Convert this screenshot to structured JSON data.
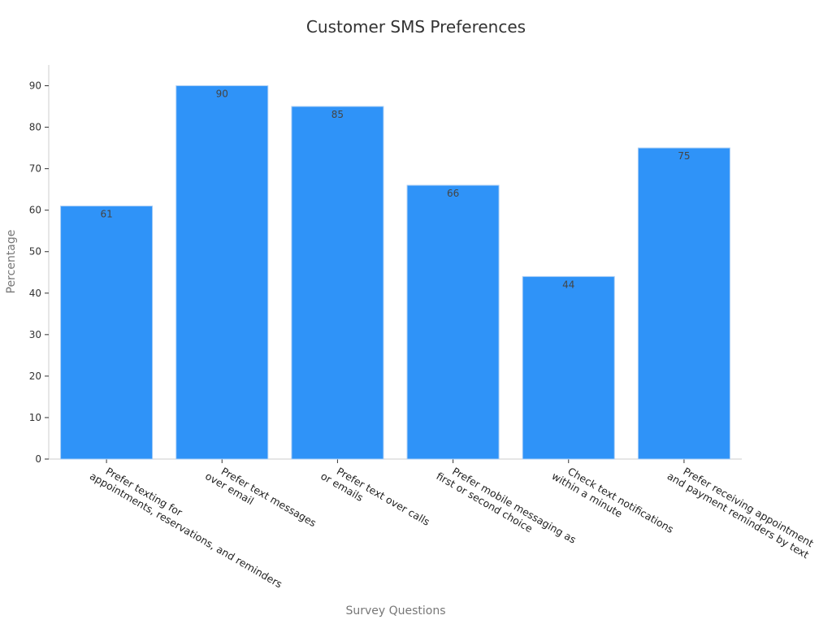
{
  "chart_data": {
    "type": "bar",
    "title": "Customer SMS Preferences",
    "xlabel": "Survey Questions",
    "ylabel": "Percentage",
    "ylim": [
      0,
      95
    ],
    "yticks": [
      0,
      10,
      20,
      30,
      40,
      50,
      60,
      70,
      80,
      90
    ],
    "grid": false,
    "legend": "none",
    "bar_color": "#2f93f8",
    "categories": [
      [
        "Prefer texting for",
        "appointments, reservations, and reminders"
      ],
      [
        "Prefer text messages",
        "over email"
      ],
      [
        "Prefer text over calls",
        "or emails"
      ],
      [
        "Prefer mobile messaging as",
        "first or second choice"
      ],
      [
        "Check text notifications",
        "within a minute"
      ],
      [
        "Prefer receiving appointment",
        "and payment reminders by text"
      ]
    ],
    "values": [
      61,
      90,
      85,
      66,
      44,
      75
    ]
  }
}
